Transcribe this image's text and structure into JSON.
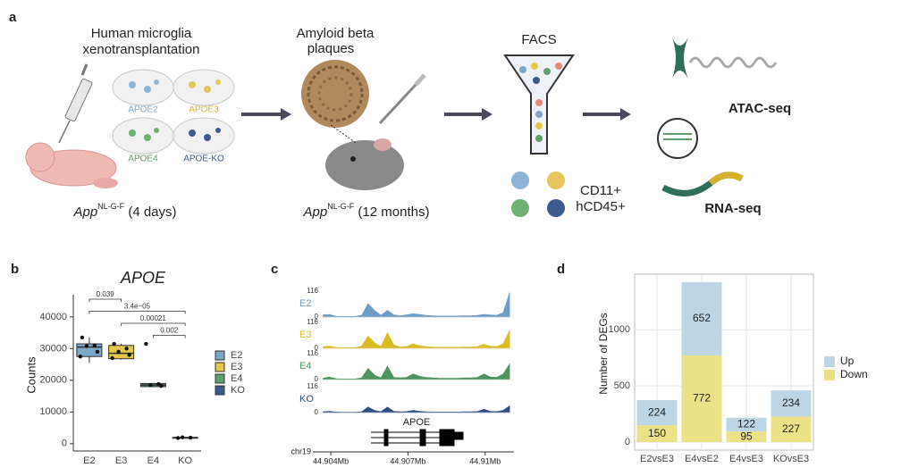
{
  "panel_labels": [
    "a",
    "b",
    "c",
    "d"
  ],
  "diagram": {
    "transplant": {
      "title": [
        "Human microglia",
        "xenotransplantation"
      ],
      "dishes": [
        "APOE2",
        "APOE3",
        "APOE4",
        "APOE-KO"
      ],
      "caption": {
        "gene": "App",
        "genotype": "NL-G-F",
        "age": " (4 days)"
      }
    },
    "plaques": {
      "title": [
        "Amyloid beta",
        "plaques"
      ],
      "caption": {
        "gene": "App",
        "genotype": "NL-G-F",
        "age": " (12 months)"
      }
    },
    "sorting": {
      "title": "FACS",
      "markers": [
        "CD11+",
        "hCD45+"
      ]
    },
    "sequencing": {
      "assays": [
        "ATAC-seq",
        "RNA-seq"
      ]
    }
  },
  "chart_data": [
    {
      "type": "box",
      "title": "APOE",
      "ylabel": "Counts",
      "categories": [
        "E2",
        "E3",
        "E4",
        "KO"
      ],
      "series": [
        {
          "name": "E2",
          "color": "#7ba7c9",
          "whislo": 25500,
          "q1": 27500,
          "median": 30500,
          "q3": 31500,
          "whishi": 33500,
          "points": [
            33500,
            31000,
            30800,
            29000,
            27500
          ]
        },
        {
          "name": "E3",
          "color": "#e3c64a",
          "whislo": 26500,
          "q1": 26800,
          "median": 28500,
          "q3": 31000,
          "whishi": 31500,
          "points": [
            31500,
            30000,
            29000,
            28000,
            27000
          ]
        },
        {
          "name": "E4",
          "color": "#5f9e6e",
          "whislo": 17800,
          "q1": 18000,
          "median": 18500,
          "q3": 19000,
          "whishi": 19000,
          "points": [
            31500,
            18800,
            18500,
            18200
          ]
        },
        {
          "name": "KO",
          "color": "#3a5a8c",
          "whislo": 1800,
          "q1": 1800,
          "median": 1900,
          "q3": 2000,
          "whishi": 2000,
          "points": [
            1800,
            1900,
            2000
          ]
        }
      ],
      "ylim": [
        -2300,
        47000
      ],
      "yticks": [
        0,
        10000,
        20000,
        30000,
        40000
      ],
      "comparisons": [
        {
          "groups": [
            "E2",
            "E3"
          ],
          "label": "0.039"
        },
        {
          "groups": [
            "E2",
            "KO"
          ],
          "label": "3.4e−05"
        },
        {
          "groups": [
            "E3",
            "KO"
          ],
          "label": "0.00021"
        },
        {
          "groups": [
            "E4",
            "KO"
          ],
          "label": "0.002"
        }
      ]
    },
    {
      "type": "track",
      "gene": "APOE",
      "xlabel": "chr19",
      "x": [
        44.9037,
        44.90395,
        44.9042,
        44.90445,
        44.9047,
        44.90495,
        44.9052,
        44.90545,
        44.9057,
        44.90595,
        44.9062,
        44.90645,
        44.9067,
        44.90695,
        44.9072,
        44.90745,
        44.9077,
        44.90795,
        44.9082,
        44.90845,
        44.9087,
        44.90895,
        44.9092,
        44.90945,
        44.9097,
        44.90995,
        44.9102,
        44.91045,
        44.9107,
        44.91095
      ],
      "xlim": [
        44.90365,
        44.91112
      ],
      "xticks": [
        {
          "value": 44.904,
          "label": "44.904Mb"
        },
        {
          "value": 44.907,
          "label": "44.907Mb"
        },
        {
          "value": 44.91,
          "label": "44.91Mb"
        }
      ],
      "ylim": [
        0,
        116
      ],
      "yticks": [
        0,
        116
      ],
      "series": [
        {
          "name": "E2",
          "color": "#6f9cc4",
          "values": [
            10,
            12,
            4,
            3,
            3,
            3,
            8,
            60,
            30,
            8,
            30,
            10,
            6,
            10,
            15,
            12,
            8,
            6,
            5,
            5,
            5,
            5,
            6,
            6,
            8,
            12,
            10,
            8,
            20,
            110
          ]
        },
        {
          "name": "E3",
          "color": "#d9bc22",
          "values": [
            8,
            10,
            4,
            3,
            3,
            3,
            10,
            55,
            25,
            8,
            70,
            15,
            6,
            8,
            20,
            12,
            8,
            6,
            5,
            5,
            5,
            5,
            6,
            6,
            8,
            18,
            10,
            8,
            20,
            80
          ]
        },
        {
          "name": "E4",
          "color": "#4f9460",
          "values": [
            6,
            12,
            4,
            3,
            3,
            3,
            8,
            50,
            20,
            8,
            60,
            10,
            8,
            10,
            25,
            15,
            10,
            8,
            6,
            6,
            6,
            6,
            8,
            8,
            10,
            25,
            12,
            10,
            25,
            70
          ]
        },
        {
          "name": "KO",
          "color": "#2f4f80",
          "values": [
            4,
            6,
            3,
            2,
            2,
            2,
            4,
            25,
            10,
            4,
            25,
            6,
            4,
            5,
            10,
            6,
            4,
            3,
            3,
            3,
            3,
            3,
            4,
            4,
            5,
            15,
            6,
            5,
            10,
            30
          ]
        }
      ]
    },
    {
      "type": "bar",
      "ylabel": "Number of DEGs",
      "categories": [
        "E2vsE3",
        "E4vsE2",
        "E4vsE3",
        "KOvsE3"
      ],
      "series": [
        {
          "name": "Up",
          "color": "#bcd6e6",
          "values": [
            224,
            652,
            122,
            234
          ]
        },
        {
          "name": "Down",
          "color": "#ebe186",
          "values": [
            150,
            772,
            95,
            227
          ]
        }
      ],
      "stacked": true,
      "ylim": [
        -71,
        1495
      ],
      "yticks": [
        0,
        500,
        1000
      ],
      "grid": true,
      "legend": "right"
    }
  ]
}
